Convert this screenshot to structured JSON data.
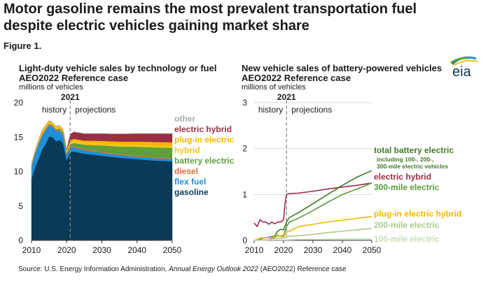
{
  "headline": "Motor gasoline remains the most prevalent transportation fuel despite electric vehicles gaining market share",
  "figure_label": "Figure 1.",
  "logo_text": "eia",
  "source": {
    "prefix": "Source: U.S. Energy Information Administration, ",
    "title": "Annual Energy Outlook 2022",
    "suffix": " (AEO2022) Reference case"
  },
  "colors": {
    "gasoline": "#0b3a57",
    "flex_fuel": "#1e8fd8",
    "diesel": "#d3733a",
    "battery_electric": "#5f9f3a",
    "hybrid": "#f2c51b",
    "plugin_electric": "#f5b500",
    "electric_hybrid": "#9b2d45",
    "other": "#a9a9a9",
    "total_battery_electric": "#3f7a26",
    "mile300": "#5a9a3c",
    "mile200": "#a9c98a",
    "mile100": "#c9ddb7",
    "plugin_hybrid_line": "#f5b500",
    "electric_hybrid_line": "#9b2d45"
  },
  "chart_data": [
    {
      "type": "area",
      "title": "Light-duty vehicle sales by technology or fuel",
      "subtitle": "AEO2022 Reference case",
      "ylabel": "millions of vehicles",
      "xlim": [
        2010,
        2050
      ],
      "ylim": [
        0,
        20
      ],
      "xticks": [
        2010,
        2020,
        2030,
        2040,
        2050
      ],
      "yticks": [
        0,
        5,
        10,
        15,
        20
      ],
      "divider_year": 2021,
      "divider_label": "2021",
      "history_label": "history",
      "projections_label": "projections",
      "x": [
        2010,
        2011,
        2012,
        2013,
        2014,
        2015,
        2016,
        2017,
        2018,
        2019,
        2020,
        2021,
        2022,
        2025,
        2030,
        2035,
        2040,
        2045,
        2050
      ],
      "series": [
        {
          "name": "gasoline",
          "key": "gasoline",
          "values": [
            9.0,
            10.6,
            11.8,
            13.2,
            14.0,
            15.1,
            15.0,
            14.4,
            14.6,
            14.1,
            11.6,
            12.8,
            12.9,
            12.6,
            12.3,
            12.0,
            11.8,
            11.6,
            11.5
          ]
        },
        {
          "name": "flex fuel",
          "key": "flex_fuel",
          "values": [
            1.8,
            2.0,
            2.2,
            2.0,
            2.0,
            1.6,
            1.5,
            1.5,
            1.3,
            1.2,
            0.8,
            0.6,
            0.6,
            0.5,
            0.45,
            0.4,
            0.35,
            0.35,
            0.3
          ]
        },
        {
          "name": "diesel",
          "key": "diesel",
          "values": [
            0.1,
            0.1,
            0.15,
            0.2,
            0.2,
            0.2,
            0.15,
            0.15,
            0.15,
            0.15,
            0.1,
            0.15,
            0.15,
            0.15,
            0.15,
            0.15,
            0.15,
            0.15,
            0.15
          ]
        },
        {
          "name": "battery electric",
          "key": "battery_electric",
          "values": [
            0.0,
            0.0,
            0.01,
            0.05,
            0.06,
            0.07,
            0.08,
            0.1,
            0.2,
            0.24,
            0.23,
            0.4,
            0.5,
            0.65,
            0.9,
            1.1,
            1.3,
            1.4,
            1.5
          ]
        },
        {
          "name": "hybrid",
          "key": "hybrid",
          "values": [
            0.25,
            0.25,
            0.4,
            0.45,
            0.4,
            0.35,
            0.3,
            0.3,
            0.3,
            0.3,
            0.35,
            0.4,
            0.4,
            0.35,
            0.3,
            0.3,
            0.3,
            0.3,
            0.3
          ]
        },
        {
          "name": "plug-in electric",
          "key": "plugin_electric",
          "values": [
            0.0,
            0.02,
            0.04,
            0.05,
            0.05,
            0.05,
            0.05,
            0.08,
            0.1,
            0.08,
            0.07,
            0.18,
            0.2,
            0.25,
            0.35,
            0.4,
            0.45,
            0.5,
            0.5
          ]
        },
        {
          "name": "electric hybrid",
          "key": "electric_hybrid",
          "values": [
            0.0,
            0.0,
            0.0,
            0.0,
            0.0,
            0.0,
            0.0,
            0.0,
            0.0,
            0.0,
            0.1,
            0.9,
            1.0,
            1.0,
            1.05,
            1.1,
            1.15,
            1.2,
            1.25
          ]
        },
        {
          "name": "other",
          "key": "other",
          "values": [
            0.05,
            0.05,
            0.05,
            0.05,
            0.05,
            0.05,
            0.05,
            0.05,
            0.05,
            0.05,
            0.05,
            0.05,
            0.05,
            0.05,
            0.05,
            0.05,
            0.05,
            0.05,
            0.05
          ]
        }
      ],
      "legend": [
        {
          "label": "other",
          "key": "other"
        },
        {
          "label": "electric hybrid",
          "key": "electric_hybrid"
        },
        {
          "label": "plug-in electric",
          "key": "plugin_electric"
        },
        {
          "label": "hybrid",
          "key": "hybrid"
        },
        {
          "label": "battery electric",
          "key": "battery_electric"
        },
        {
          "label": "diesel",
          "key": "diesel"
        },
        {
          "label": "flex fuel",
          "key": "flex_fuel"
        },
        {
          "label": "gasoline",
          "key": "gasoline"
        }
      ],
      "legend_placement": "right"
    },
    {
      "type": "line",
      "title": "New vehicle sales of battery-powered vehicles",
      "subtitle": "AEO2022 Reference case",
      "ylabel": "millions of vehicles",
      "xlim": [
        2010,
        2050
      ],
      "ylim": [
        0,
        3
      ],
      "xticks": [
        2010,
        2020,
        2030,
        2040,
        2050
      ],
      "yticks": [
        0,
        1,
        2,
        3
      ],
      "grid": "horizontal",
      "divider_year": 2021,
      "divider_label": "2021",
      "history_label": "history",
      "projections_label": "projections",
      "series": [
        {
          "name": "electric hybrid",
          "key": "electric_hybrid_line",
          "x": [
            2010,
            2011,
            2012,
            2013,
            2014,
            2015,
            2016,
            2017,
            2018,
            2019,
            2020,
            2020.5,
            2021,
            2022,
            2025,
            2030,
            2035,
            2040,
            2045,
            2050
          ],
          "values": [
            0.38,
            0.3,
            0.45,
            0.4,
            0.4,
            0.35,
            0.4,
            0.36,
            0.4,
            0.4,
            0.45,
            0.8,
            1.0,
            1.02,
            1.03,
            1.07,
            1.12,
            1.16,
            1.2,
            1.25
          ]
        },
        {
          "name": "total battery electric",
          "note": "including 100-, 200-, 300-mile electric vehicles",
          "key": "total_battery_electric",
          "x": [
            2010,
            2011,
            2012,
            2013,
            2014,
            2015,
            2016,
            2017,
            2018,
            2019,
            2020,
            2021,
            2022,
            2025,
            2030,
            2035,
            2040,
            2045,
            2050
          ],
          "values": [
            0.0,
            0.01,
            0.02,
            0.05,
            0.06,
            0.07,
            0.08,
            0.1,
            0.2,
            0.24,
            0.23,
            0.4,
            0.5,
            0.6,
            0.8,
            1.0,
            1.2,
            1.38,
            1.52
          ]
        },
        {
          "name": "300-mile electric",
          "key": "mile300",
          "x": [
            2010,
            2012,
            2015,
            2018,
            2020,
            2021,
            2022,
            2025,
            2030,
            2035,
            2040,
            2045,
            2050
          ],
          "values": [
            0.0,
            0.0,
            0.02,
            0.1,
            0.1,
            0.3,
            0.4,
            0.48,
            0.65,
            0.83,
            1.0,
            1.12,
            1.25
          ]
        },
        {
          "name": "plug-in electric hybrid",
          "key": "plugin_hybrid_line",
          "x": [
            2010,
            2012,
            2014,
            2016,
            2018,
            2019,
            2020,
            2021,
            2022,
            2025,
            2030,
            2035,
            2040,
            2045,
            2050
          ],
          "values": [
            0.0,
            0.05,
            0.06,
            0.06,
            0.12,
            0.09,
            0.08,
            0.18,
            0.2,
            0.3,
            0.35,
            0.4,
            0.44,
            0.48,
            0.52
          ]
        },
        {
          "name": "200-mile electric",
          "key": "mile200",
          "x": [
            2010,
            2015,
            2018,
            2020,
            2021,
            2022,
            2025,
            2030,
            2035,
            2040,
            2045,
            2050
          ],
          "values": [
            0.0,
            0.02,
            0.05,
            0.05,
            0.08,
            0.09,
            0.1,
            0.13,
            0.17,
            0.2,
            0.23,
            0.26
          ]
        },
        {
          "name": "100-mile electric",
          "key": "mile100",
          "x": [
            2010,
            2015,
            2020,
            2021,
            2025,
            2030,
            2035,
            2040,
            2045,
            2050
          ],
          "values": [
            0.0,
            0.01,
            0.01,
            0.01,
            0.02,
            0.02,
            0.02,
            0.03,
            0.03,
            0.03
          ]
        }
      ],
      "legend": [
        {
          "label": "total battery electric",
          "key": "total_battery_electric",
          "note": "including 100-, 200-, 300-mile electric vehicles"
        },
        {
          "label": "electric hybrid",
          "key": "electric_hybrid_line"
        },
        {
          "label": "300-mile electric",
          "key": "mile300"
        },
        {
          "label": "plug-in electric hybrid",
          "key": "plugin_hybrid_line"
        },
        {
          "label": "200-mile electric",
          "key": "mile200"
        },
        {
          "label": "100-mile electric",
          "key": "mile100"
        }
      ],
      "legend_placement": "right"
    }
  ]
}
